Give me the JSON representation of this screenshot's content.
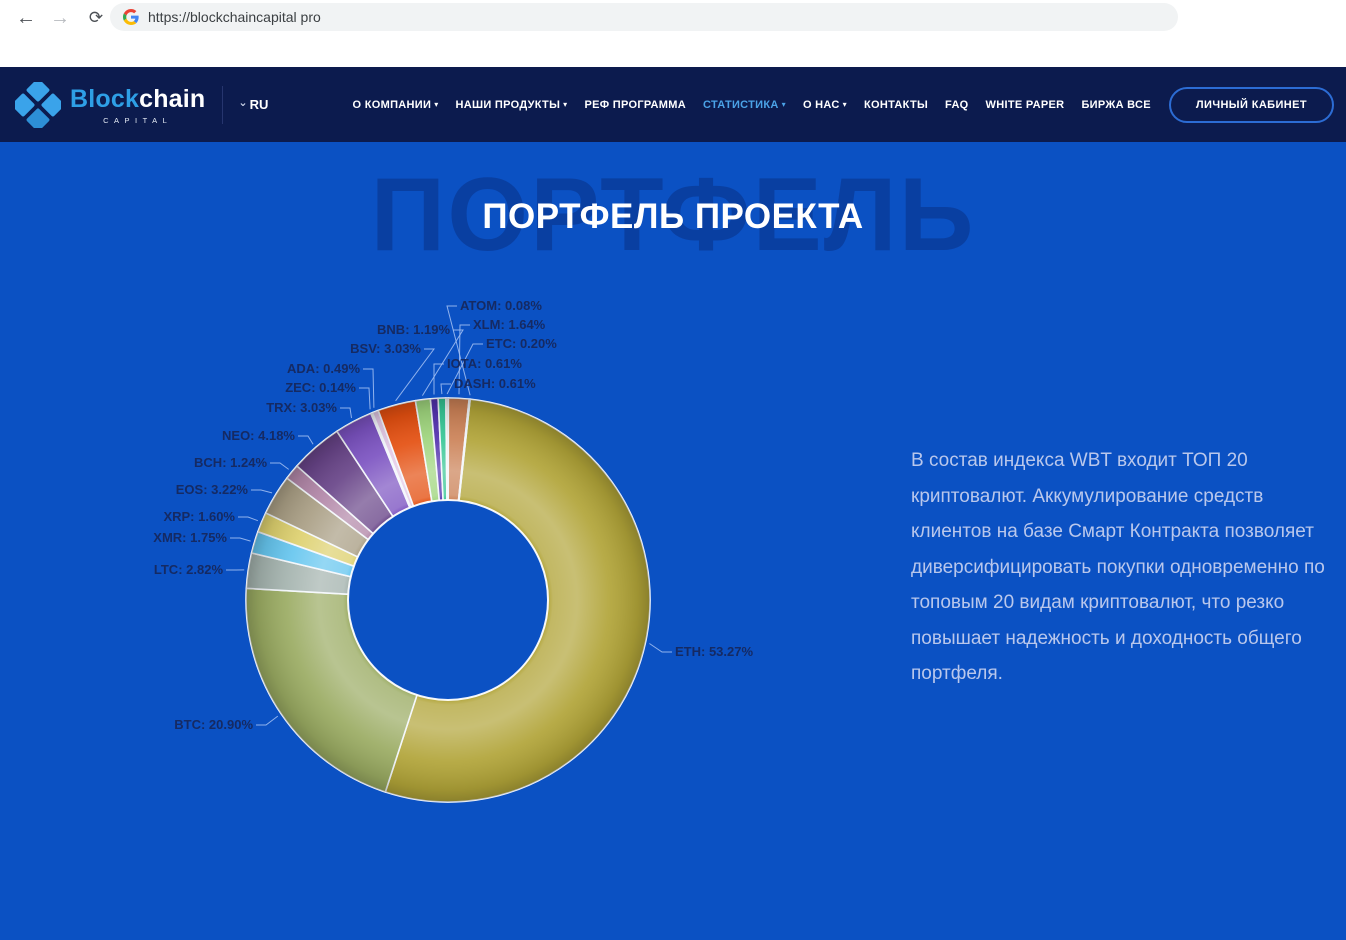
{
  "browser": {
    "url": "https://blockchaincapital pro"
  },
  "icons": {
    "back_arrow": "←",
    "forward_arrow": "→",
    "refresh": "⟳",
    "chevron_down": "⌄",
    "caret_down": "▾"
  },
  "header": {
    "logo": {
      "part1": "Block",
      "part2": "chain",
      "subtitle": "CAPITAL"
    },
    "language": "RU",
    "nav": [
      {
        "label": "О КОМПАНИИ",
        "caret": true,
        "active": false
      },
      {
        "label": "НАШИ ПРОДУКТЫ",
        "caret": true,
        "active": false
      },
      {
        "label": "РЕФ ПРОГРАММА",
        "caret": false,
        "active": false
      },
      {
        "label": "СТАТИСТИКА",
        "caret": true,
        "active": true
      },
      {
        "label": "О НАС",
        "caret": true,
        "active": false
      },
      {
        "label": "КОНТАКТЫ",
        "caret": false,
        "active": false
      },
      {
        "label": "FAQ",
        "caret": false,
        "active": false
      },
      {
        "label": "WHITE PAPER",
        "caret": false,
        "active": false
      },
      {
        "label": "БИРЖА ВСЕ",
        "caret": false,
        "active": false
      }
    ],
    "account_button": "ЛИЧНЫЙ КАБИНЕТ"
  },
  "main": {
    "watermark": "ПОРТФЕЛЬ",
    "title": "ПОРТФЕЛЬ ПРОЕКТА",
    "description": "В состав индекса WBT входит ТОП 20 криптовалют. Аккумулирование средств клиентов на базе Смарт Контракта позволяет диверсифицировать покупки одновременно по топовым 20 видам криптовалют, что резко повышает надежность и доходность общего портфеля."
  },
  "colors": {
    "page_background": "#0b51c3",
    "header_background": "#0c1b4e",
    "active_nav_link": "#4ba3e8",
    "account_button_border": "#2c6cd4",
    "chart_label_text": "#152a63",
    "leader_line": "#9fbdf2",
    "description_text": "#b9c7ec"
  },
  "chart_data": {
    "type": "pie",
    "style": "3d-donut",
    "title": "ПОРТФЕЛЬ ПРОЕКТА",
    "unit": "%",
    "legend_position": "callout-labels",
    "start_angle_deg": 6.3,
    "inner_radius_ratio": 0.5,
    "segments": [
      {
        "symbol": "ETH",
        "pct": "53.27",
        "color": "#b1a438"
      },
      {
        "symbol": "BTC",
        "pct": "20.90",
        "color": "#9aab62"
      },
      {
        "symbol": "LTC",
        "pct": "2.82",
        "color": "#a4b3ae"
      },
      {
        "symbol": "XMR",
        "pct": "1.75",
        "color": "#66c6ef"
      },
      {
        "symbol": "XRP",
        "pct": "1.60",
        "color": "#ddd06e"
      },
      {
        "symbol": "EOS",
        "pct": "3.22",
        "color": "#a99e84"
      },
      {
        "symbol": "BCH",
        "pct": "1.24",
        "color": "#b287a8"
      },
      {
        "symbol": "NEO",
        "pct": "4.18",
        "color": "#684488"
      },
      {
        "symbol": "TRX",
        "pct": "3.03",
        "color": "#7b52c1"
      },
      {
        "symbol": "ZEC",
        "pct": "0.14",
        "color": "#eef0f6"
      },
      {
        "symbol": "ADA",
        "pct": "0.49",
        "color": "#e2c8e6"
      },
      {
        "symbol": "BSV",
        "pct": "3.03",
        "color": "#e44f10"
      },
      {
        "symbol": "BNB",
        "pct": "1.19",
        "color": "#9fd57d"
      },
      {
        "symbol": "IOTA",
        "pct": "0.61",
        "color": "#5230ae"
      },
      {
        "symbol": "DASH",
        "pct": "0.61",
        "color": "#36c695"
      },
      {
        "symbol": "ETC",
        "pct": "0.20",
        "color": "#efe9da"
      },
      {
        "symbol": "XLM",
        "pct": "1.64",
        "color": "#cb8156"
      },
      {
        "symbol": "ATOM",
        "pct": "0.08",
        "color": "#e8dccd"
      }
    ]
  }
}
